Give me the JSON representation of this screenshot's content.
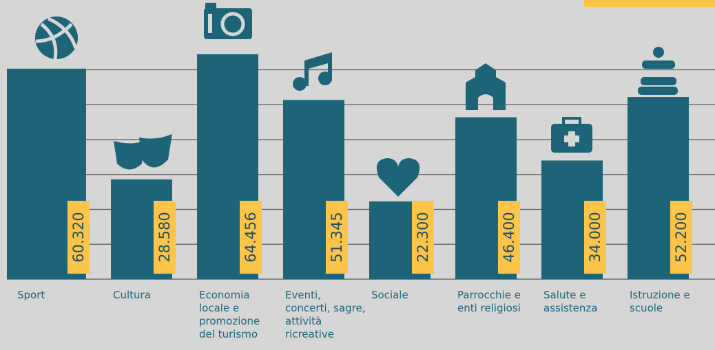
{
  "chart_data": {
    "type": "bar",
    "categories": [
      "Sport",
      "Cultura",
      "Economia locale e promozione del turismo",
      "Eventi, concerti, sagre, attività ricreative",
      "Sociale",
      "Parrocchie e enti religiosi",
      "Salute e assistenza",
      "Istruzione e scuole"
    ],
    "values": [
      60320,
      28580,
      64456,
      51345,
      22300,
      46400,
      34000,
      52200
    ],
    "value_labels": [
      "60.320",
      "28.580",
      "64.456",
      "51.345",
      "22.300",
      "46.400",
      "34.000",
      "52.200"
    ],
    "color": "#1d6479",
    "label_color": "#fcc54a",
    "ylim": [
      0,
      80000
    ],
    "yticks": [
      0,
      10000,
      20000,
      30000,
      40000,
      50000,
      60000
    ],
    "grid": true
  }
}
